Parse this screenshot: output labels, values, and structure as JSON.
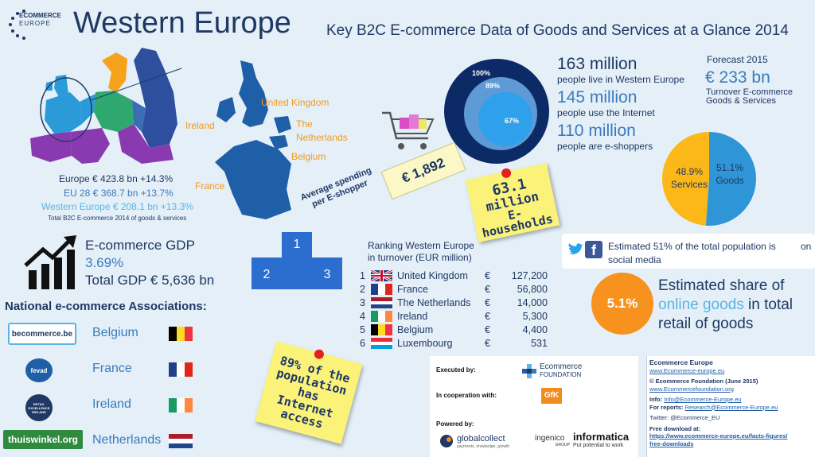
{
  "header": {
    "logo_line1": "ECOMMERCE",
    "logo_line2": "EUROPE",
    "title": "Western Europe",
    "subtitle": "Key B2C E-commerce Data of Goods and Services at a Glance 2014"
  },
  "europe_stats": {
    "europe": "Europe € 423.8 bn +14.3%",
    "eu28": "EU 28 € 368.7 bn +13.7%",
    "western": "Western Europe € 208.1 bn +13.3%",
    "footnote": "Total B2C E-commerce 2014 of goods & services"
  },
  "map_labels": {
    "uk": "United Kingdom",
    "ireland": "Ireland",
    "netherlands": "The Netherlands",
    "belgium": "Belgium",
    "france": "France"
  },
  "circles": {
    "pct_outer": "100%",
    "pct_middle": "89%",
    "pct_inner": "67%"
  },
  "population": {
    "people_value": "163 million",
    "people_label": "people live in Western Europe",
    "internet_value": "145 million",
    "internet_label": "people use the Internet",
    "shoppers_value": "110 million",
    "shoppers_label": "people are e-shoppers"
  },
  "forecast": {
    "label": "Forecast 2015",
    "value": "€ 233 bn",
    "desc_line1": "Turnover E-commerce",
    "desc_line2": "Goods & Services"
  },
  "pie": {
    "services_pct": "48.9%",
    "services_label": "Services",
    "goods_pct": "51.1%",
    "goods_label": "Goods",
    "goods_share": 0.511,
    "goods_color": "#2e95d6",
    "services_color": "#fbb818"
  },
  "spending": {
    "label_line1": "Average spending",
    "label_line2": "per E-shopper",
    "value": "€ 1,892"
  },
  "households_note": {
    "line1": "63.1",
    "line2": "million",
    "line3": "E-households"
  },
  "social": {
    "text_line1": "Estimated 51% of the total population is",
    "text_on": "on",
    "text_line2": "social media"
  },
  "share": {
    "value": "5.1%",
    "line1": "Estimated share of",
    "line2_highlight": "online goods",
    "line2_rest": " in total",
    "line3": "retail of goods"
  },
  "gdp": {
    "title": "E-commerce GDP",
    "value": "3.69%",
    "total": "Total GDP € 5,636 bn"
  },
  "podium": {
    "first": "1",
    "second": "2",
    "third": "3"
  },
  "ranking": {
    "title_line1": "Ranking Western Europe",
    "title_line2": "in turnover (EUR million)",
    "rows": [
      {
        "rank": "1",
        "country": "United Kingdom",
        "cur": "€",
        "value": "127,200"
      },
      {
        "rank": "2",
        "country": "France",
        "cur": "€",
        "value": "56,800"
      },
      {
        "rank": "3",
        "country": "The Netherlands",
        "cur": "€",
        "value": "14,000"
      },
      {
        "rank": "4",
        "country": "Ireland",
        "cur": "€",
        "value": "5,300"
      },
      {
        "rank": "5",
        "country": "Belgium",
        "cur": "€",
        "value": "4,400"
      },
      {
        "rank": "6",
        "country": "Luxembourg",
        "cur": "€",
        "value": "531"
      }
    ]
  },
  "associations": {
    "title": "National e-commerce Associations:",
    "items": [
      {
        "logo": "becommerce.be",
        "country": "Belgium"
      },
      {
        "logo": "fevad",
        "country": "France"
      },
      {
        "logo": "RETAIL EXCELLENCE IRELAND",
        "country": "Ireland"
      },
      {
        "logo": "thuiswinkel.org",
        "country": "Netherlands"
      }
    ]
  },
  "internet_note": {
    "line1": "89% of the",
    "line2": "population",
    "line3": "has",
    "line4": "Internet",
    "line5": "access"
  },
  "credits": {
    "executed_label": "Executed by:",
    "executed_name_line1": "Ecommerce",
    "executed_name_line2": "FOUNDATION",
    "coop_label": "In cooperation with:",
    "coop_name": "GfK",
    "powered_label": "Powered by:",
    "powered_1": "globalcollect",
    "powered_1_tag": "payments, knowledge, growth",
    "powered_2": "ingenico",
    "powered_2_tag": "GROUP",
    "powered_3": "informatica",
    "powered_3_tag": "Put potential to work"
  },
  "contact": {
    "org": "Ecommerce Europe",
    "org_url": "www.Ecommerce-europe.eu",
    "copyright": "© Ecommerce Foundation (June 2015)",
    "foundation_url": "www.Ecommercefoundation.org",
    "info_label": "Info: ",
    "info_email": "Info@Ecommerce-Europe.eu",
    "reports_label": "For reports: ",
    "reports_email": "Research@Ecommerce-Europe.eu",
    "twitter": "Twitter: @Ecommerce_EU",
    "download_label": "Free download at:",
    "download_url_line1": "https://www.ecommerce-europe.eu/facts-figures/",
    "download_url_line2": "free-downloads"
  }
}
